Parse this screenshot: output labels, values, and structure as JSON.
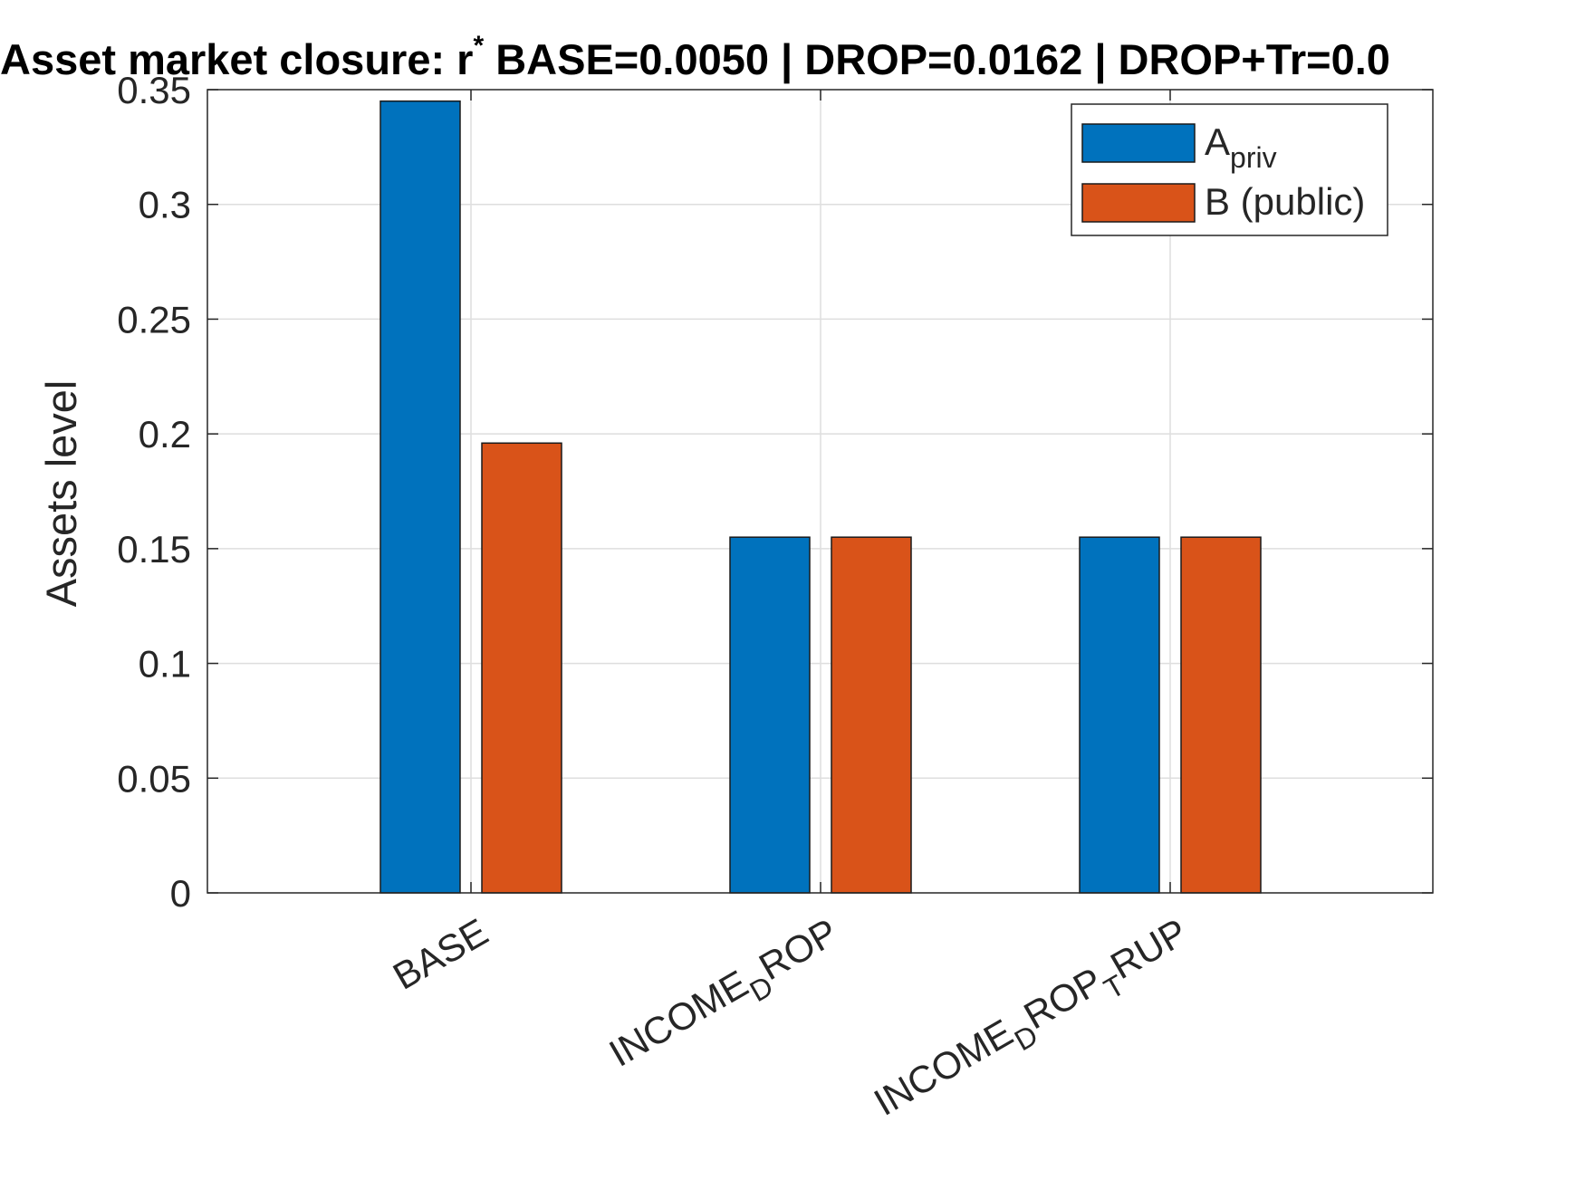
{
  "chart_data": {
    "type": "bar",
    "title": {
      "pre": "Asset market closure: r",
      "sup": "*",
      "post": " BASE=0.0050 | DROP=0.0162 | DROP+Tr=0.0"
    },
    "xlabel": "",
    "ylabel": "Assets level",
    "ylim": [
      0,
      0.35
    ],
    "yticks": [
      "0",
      "0.05",
      "0.1",
      "0.15",
      "0.2",
      "0.25",
      "0.3",
      "0.35"
    ],
    "ytick_values": [
      0,
      0.05,
      0.1,
      0.15,
      0.2,
      0.25,
      0.3,
      0.35
    ],
    "categories": [
      "BASE",
      "INCOME_DROP",
      "INCOME_DROP_TRUP"
    ],
    "category_labels": [
      [
        {
          "t": "BASE",
          "s": "n"
        }
      ],
      [
        {
          "t": "INCOME",
          "s": "n"
        },
        {
          "t": "D",
          "s": "sub"
        },
        {
          "t": "ROP",
          "s": "n"
        }
      ],
      [
        {
          "t": "INCOME",
          "s": "n"
        },
        {
          "t": "D",
          "s": "sub"
        },
        {
          "t": "ROP",
          "s": "n"
        },
        {
          "t": "T",
          "s": "sub"
        },
        {
          "t": "RUP",
          "s": "n"
        }
      ]
    ],
    "series": [
      {
        "name": "A",
        "name_sub": "priv",
        "color": "#0072BD",
        "values": [
          0.345,
          0.155,
          0.155
        ]
      },
      {
        "name": "B (public)",
        "name_sub": "",
        "color": "#D95319",
        "values": [
          0.196,
          0.155,
          0.155
        ]
      }
    ],
    "grid": true,
    "legend_position": "top-right"
  }
}
